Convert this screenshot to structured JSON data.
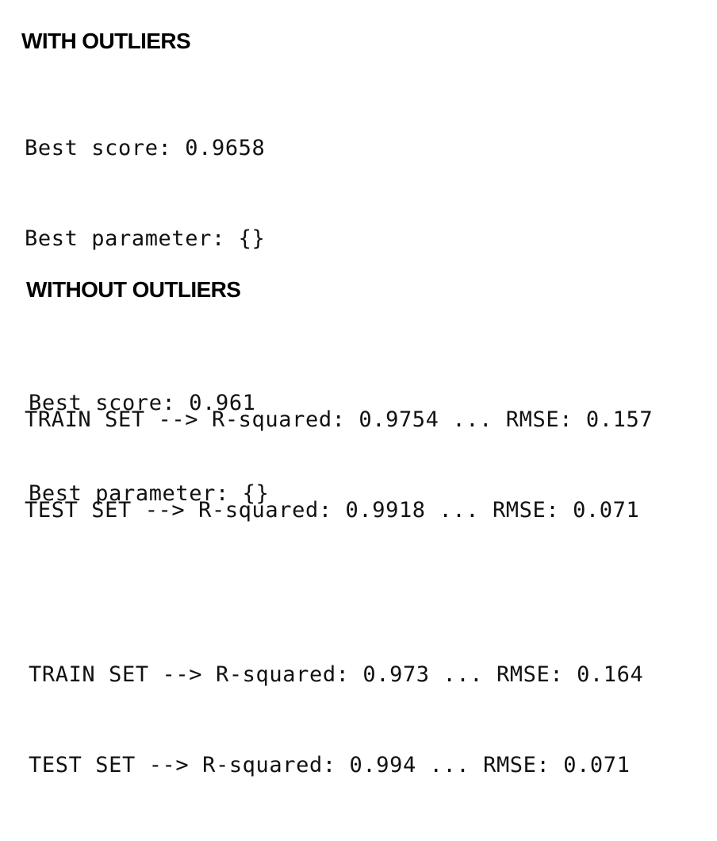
{
  "sections": [
    {
      "heading": "WITH OUTLIERS",
      "best_score": "Best score: 0.9658",
      "best_parameter": "Best parameter: {}",
      "train_set": "TRAIN SET --> R-squared: 0.9754 ... RMSE: 0.157",
      "test_set": "TEST SET --> R-squared: 0.9918 ... RMSE: 0.071"
    },
    {
      "heading": "WITHOUT OUTLIERS",
      "best_score": "Best score: 0.961",
      "best_parameter": "Best parameter: {}",
      "train_set": "TRAIN SET --> R-squared: 0.973 ... RMSE: 0.164",
      "test_set": "TEST SET --> R-squared: 0.994 ... RMSE: 0.071"
    }
  ]
}
